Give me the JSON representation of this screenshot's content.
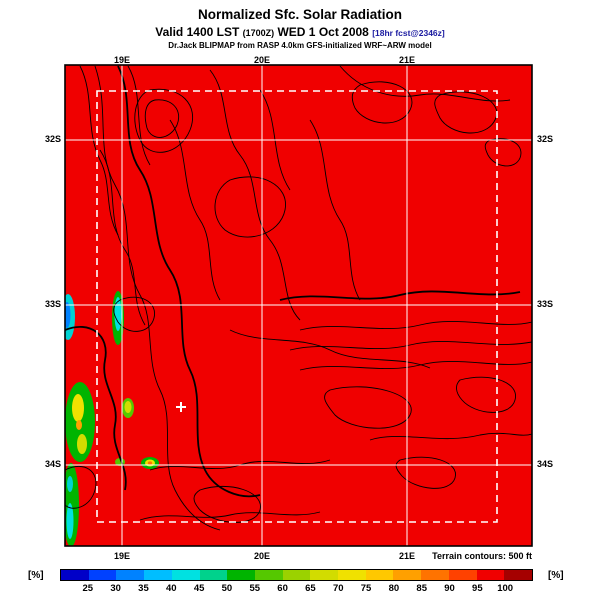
{
  "header": {
    "title": "Normalized Sfc. Solar Radiation",
    "valid_pre": "Valid 1400 LST ",
    "valid_zulu": "(1700Z)",
    "valid_date": " WED 1 Oct 2008 ",
    "fcst_tag": "[18hr fcst@2346z]",
    "model_line": "Dr.Jack BLIPMAP from RASP 4.0km GFS-initialized WRF~ARW model"
  },
  "map": {
    "lon_labels": [
      "19E",
      "20E",
      "21E"
    ],
    "lat_labels": [
      "32S",
      "33S",
      "34S"
    ],
    "terrain_note": "Terrain contours: 500 ft"
  },
  "colorbar": {
    "unit_label_left": "[%]",
    "unit_label_right": "[%]",
    "tick_labels": [
      "25",
      "30",
      "35",
      "40",
      "45",
      "50",
      "55",
      "60",
      "65",
      "70",
      "75",
      "80",
      "85",
      "90",
      "95",
      "100"
    ],
    "colors": [
      "#0000C8",
      "#0041FF",
      "#0082FF",
      "#00BEFF",
      "#00E1E1",
      "#00D28C",
      "#00B400",
      "#55C800",
      "#9BD200",
      "#D2DC00",
      "#F0E100",
      "#FFC800",
      "#FFA000",
      "#FF7300",
      "#FF4100",
      "#F00000",
      "#A50000"
    ]
  },
  "chart_data": {
    "type": "heatmap",
    "title": "Normalized Sfc. Solar Radiation",
    "units": "%",
    "valid_time": "1400 LST (1700Z) WED 1 Oct 2008",
    "forecast_tag": "18hr fcst@2346z",
    "model": "Dr.Jack BLIPMAP from RASP 4.0km GFS-initialized WRF~ARW model",
    "x_axis": {
      "label": "longitude",
      "ticks": [
        "19E",
        "20E",
        "21E"
      ]
    },
    "y_axis": {
      "label": "latitude",
      "ticks": [
        "32S",
        "33S",
        "34S"
      ]
    },
    "colorbar_values": [
      25,
      30,
      35,
      40,
      45,
      50,
      55,
      60,
      65,
      70,
      75,
      80,
      85,
      90,
      95,
      100
    ],
    "colorbar_colors": [
      "#0000C8",
      "#0041FF",
      "#0082FF",
      "#00BEFF",
      "#00E1E1",
      "#00D28C",
      "#00B400",
      "#55C800",
      "#9BD200",
      "#D2DC00",
      "#F0E100",
      "#FFC800",
      "#FFA000",
      "#FF7300",
      "#FF4100",
      "#F00000",
      "#A50000"
    ],
    "field_summary": "Nearly uniform ~100% (solid red) across entire domain; narrow reduced bands of ~25-75% (blue/cyan/green/yellow patches) along the western edge near 19E between 33S and 34.5S",
    "overlays": [
      "black terrain contours every 500 ft",
      "white lat/lon grid lines",
      "white dashed inner domain boundary box"
    ],
    "terrain_contour_interval_ft": 500
  }
}
